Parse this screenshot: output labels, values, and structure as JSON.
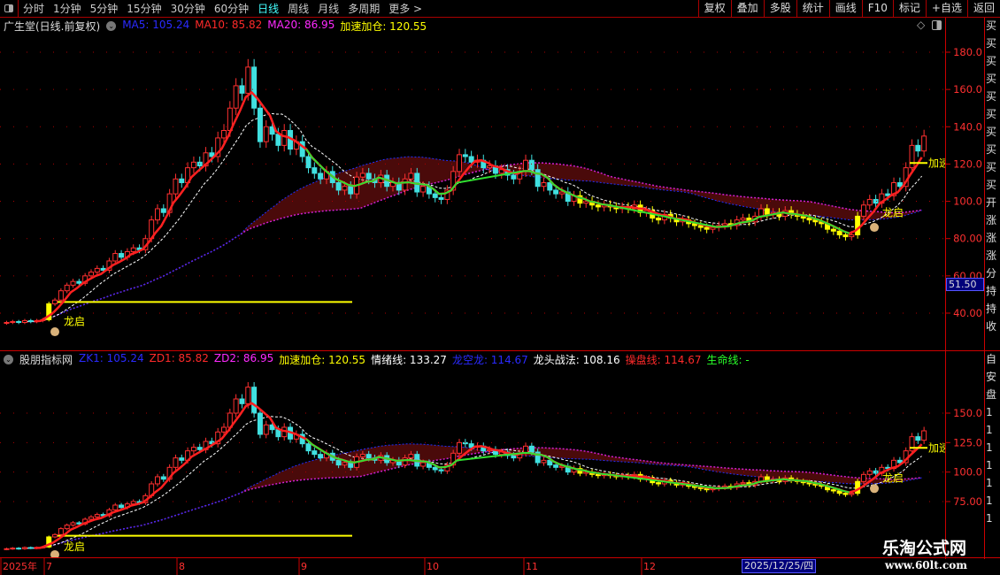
{
  "toolbar": {
    "periods": [
      "分时",
      "1分钟",
      "5分钟",
      "15分钟",
      "30分钟",
      "60分钟",
      "日线",
      "周线",
      "月线",
      "多周期",
      "更多 >"
    ],
    "active_period": "日线",
    "buttons": [
      "复权",
      "叠加",
      "多股",
      "统计",
      "画线",
      "F10",
      "标记",
      "+自选",
      "返回"
    ]
  },
  "main_panel": {
    "title": "广生堂(日线.前复权)",
    "indicators": [
      {
        "label": "MA5: 105.24",
        "color": "#2a2aff"
      },
      {
        "label": "MA10: 85.82",
        "color": "#ff2a2a"
      },
      {
        "label": "MA20: 86.95",
        "color": "#ff2aff"
      },
      {
        "label": "加速加仓: 120.55",
        "color": "#ffff00"
      }
    ],
    "y_ticks": [
      "180.0",
      "160.0",
      "140.0",
      "120.0",
      "100.0",
      "80.00",
      "60.00",
      "40.00"
    ],
    "price_tag": "51.50",
    "labels": {
      "dragon_start": "龙启",
      "accelerate": "加速"
    }
  },
  "sub_panel": {
    "title": "股朋指标网",
    "indicators": [
      {
        "label": "ZK1: 105.24",
        "color": "#2a2aff"
      },
      {
        "label": "ZD1: 85.82",
        "color": "#ff2a2a"
      },
      {
        "label": "ZD2: 86.95",
        "color": "#ff2aff"
      },
      {
        "label": "加速加仓: 120.55",
        "color": "#ffff00"
      },
      {
        "label": "情绪线: 133.27",
        "color": "#ffffff"
      },
      {
        "label": "龙空龙: 114.67",
        "color": "#2a2aff"
      },
      {
        "label": "龙头战法: 108.16",
        "color": "#ffffff"
      },
      {
        "label": "操盘线: 114.67",
        "color": "#ff2a2a"
      },
      {
        "label": "生命线: -",
        "color": "#2aff2a"
      }
    ],
    "y_ticks": [
      "150.0",
      "125.0",
      "100.0",
      "75.00"
    ]
  },
  "date_axis": {
    "labels": [
      "2025年",
      "7",
      "8",
      "9",
      "10",
      "11",
      "12"
    ],
    "cursor_date": "2025/12/25/四"
  },
  "watermark": {
    "name": "乐淘公式网",
    "url": "www.60lt.com"
  },
  "right_panel": {
    "chars": [
      "买",
      "买",
      "买",
      "买",
      "买",
      "买",
      "买",
      "买",
      "买",
      "买",
      "开",
      "涨",
      "涨",
      "涨",
      "分",
      "持",
      "持",
      "收"
    ],
    "sub_chars": [
      "自",
      "安",
      "盘",
      "1",
      "1",
      "1",
      "1",
      "1",
      "1",
      "1"
    ]
  },
  "chart_data": {
    "type": "candlestick",
    "y_range_main": [
      25,
      195
    ],
    "y_range_sub": [
      65,
      185
    ],
    "closes": [
      35,
      35.5,
      35,
      36,
      35.5,
      36,
      36.5,
      45,
      47,
      52,
      55,
      57,
      56,
      60,
      62,
      64,
      63,
      68,
      72,
      70,
      73,
      75,
      74,
      80,
      90,
      96,
      94,
      104,
      112,
      110,
      118,
      121,
      119,
      126,
      124,
      134,
      138,
      150,
      162,
      158,
      172,
      150,
      132,
      140,
      136,
      130,
      138,
      128,
      132,
      124,
      118,
      115,
      112,
      116,
      110,
      106,
      108,
      104,
      113,
      115,
      112,
      110,
      114,
      108,
      110,
      106,
      112,
      115,
      105,
      108,
      104,
      102,
      101,
      106,
      116,
      125,
      124,
      121,
      122,
      118,
      119,
      115,
      117,
      114,
      112,
      116,
      122,
      117,
      108,
      110,
      106,
      104,
      105,
      100,
      103,
      99,
      100,
      98,
      97,
      98,
      97,
      96,
      97,
      96,
      98,
      94,
      95,
      91,
      90,
      93,
      91,
      89,
      90,
      88,
      87,
      86,
      85,
      86,
      87,
      88,
      87,
      90,
      91,
      89,
      92,
      96,
      93,
      94,
      92,
      95,
      93,
      92,
      91,
      90,
      89,
      88,
      85,
      84,
      82,
      81,
      82,
      92,
      98,
      101,
      99,
      104,
      103,
      110,
      108,
      118,
      130,
      127,
      135
    ],
    "breakout_level": 46
  }
}
